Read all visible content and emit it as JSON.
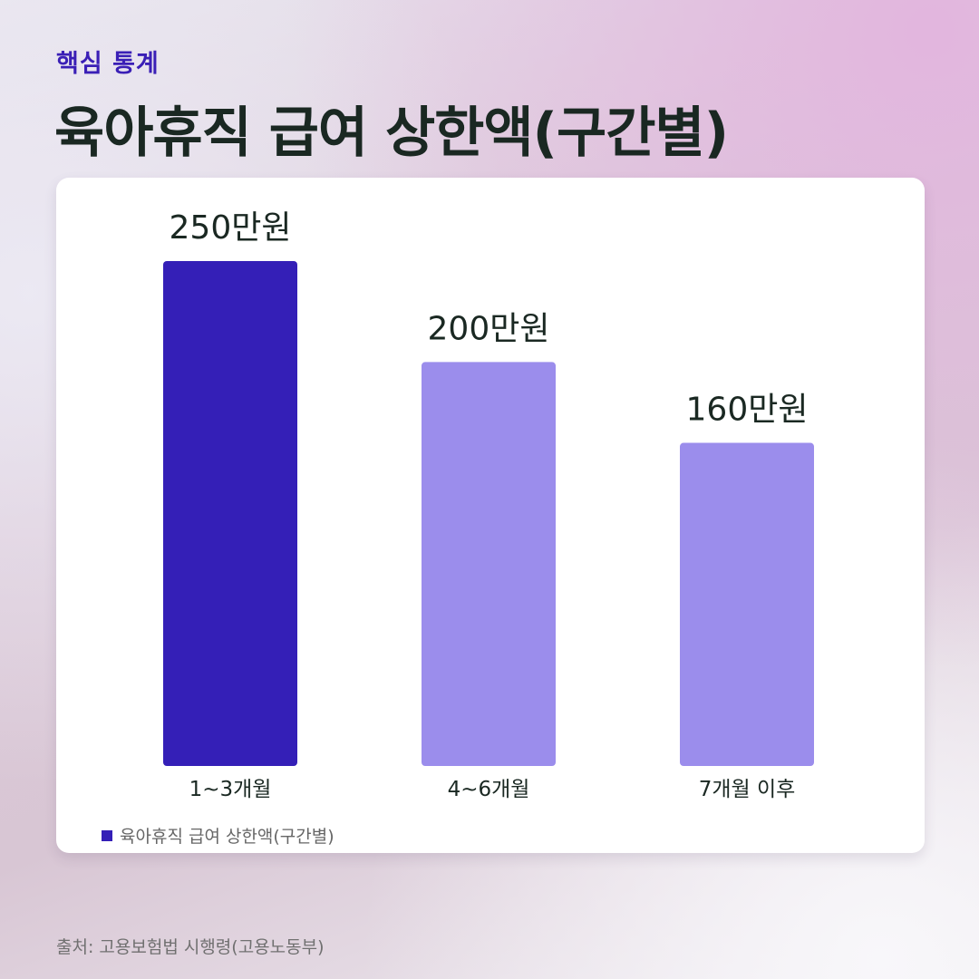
{
  "header": {
    "eyebrow": "핵심 통계",
    "title": "육아휴직 급여 상한액(구간별)"
  },
  "chart_data": {
    "type": "bar",
    "categories": [
      "1~3개월",
      "4~6개월",
      "7개월 이후"
    ],
    "values": [
      250,
      200,
      160
    ],
    "value_labels": [
      "250만원",
      "200만원",
      "160만원"
    ],
    "colors": [
      "#341fb7",
      "#9b8dec",
      "#9b8dec"
    ],
    "legend": [
      "육아휴직 급여 상한액(구간별)"
    ],
    "legend_color": "#341fb7",
    "legend_position": "bottom-left",
    "grid": false,
    "ylim": [
      0,
      250
    ]
  },
  "footer": {
    "source": "출처: 고용보험법 시행령(고용노동부)"
  }
}
